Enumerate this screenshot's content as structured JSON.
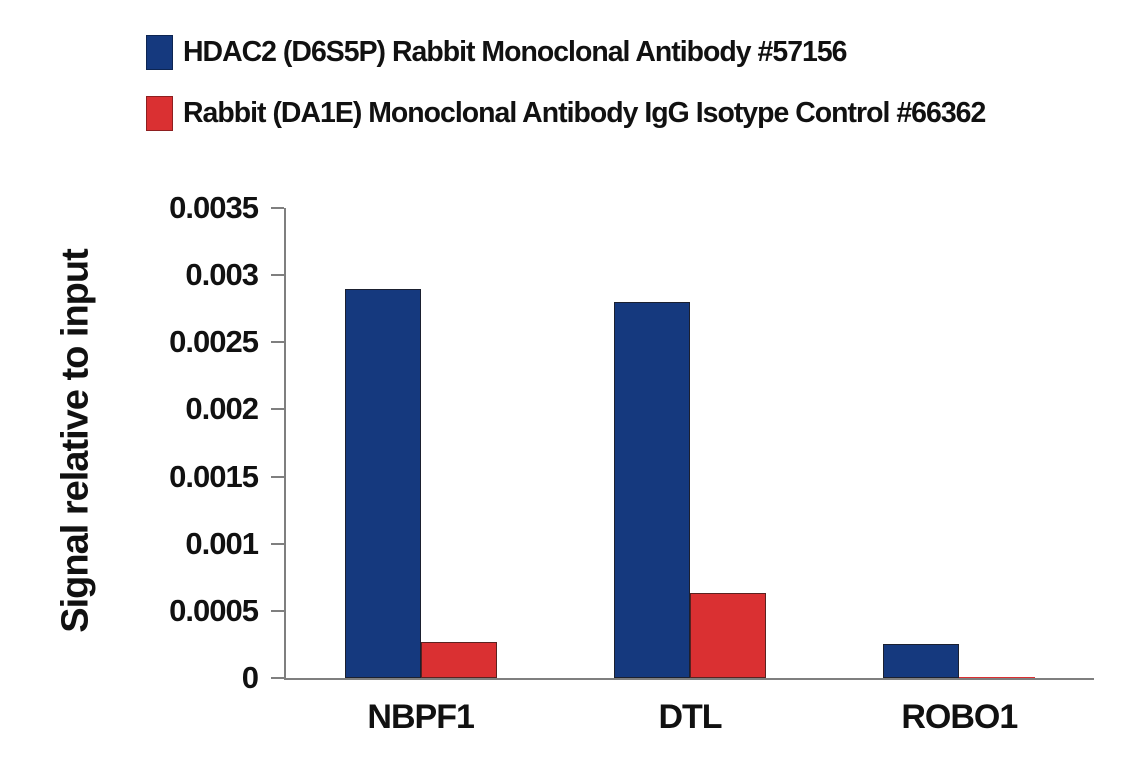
{
  "chart_data": {
    "type": "bar",
    "title": "",
    "xlabel": "",
    "ylabel": "Signal relative to input",
    "categories": [
      "NBPF1",
      "DTL",
      "ROBO1"
    ],
    "series": [
      {
        "name": "HDAC2 (D6S5P) Rabbit Monoclonal Antibody #57156",
        "color": "#15397e",
        "border_color": "#1b2030",
        "values": [
          0.0029,
          0.0028,
          0.00025
        ]
      },
      {
        "name": "Rabbit (DA1E) Monoclonal Antibody IgG Isotype Control #66362",
        "color": "#da3032",
        "border_color": "#5a2220",
        "values": [
          0.00027,
          0.00063,
          0
        ]
      }
    ],
    "ylim": [
      0,
      0.0035
    ],
    "yticks": [
      0,
      0.0005,
      0.001,
      0.0015,
      0.002,
      0.0025,
      0.003,
      0.0035
    ],
    "ytick_labels": [
      "0",
      "0.0005",
      "0.001",
      "0.0015",
      "0.002",
      "0.0025",
      "0.003",
      "0.0035"
    ],
    "grid": false,
    "legend_position": "top-left"
  },
  "colors": {
    "background": "#ffffff",
    "axis": "#7f7f7f",
    "text": "#111111"
  }
}
